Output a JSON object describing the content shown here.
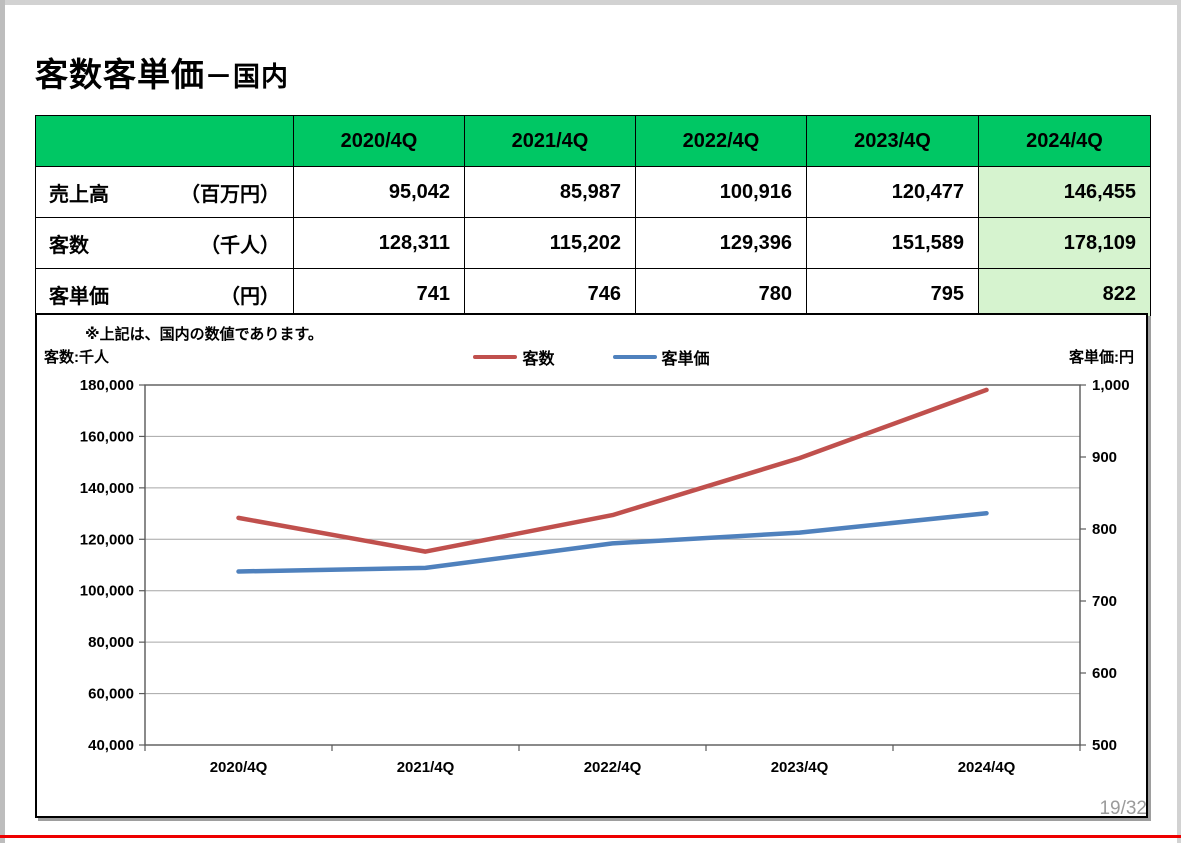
{
  "page": {
    "title_main": "客数客単価",
    "title_suffix": "－国内",
    "page_number": "19/32"
  },
  "colors": {
    "header_green": "#00C764",
    "highlight_green": "#D6F3CF",
    "bottom_rule_red": "#EE0000"
  },
  "table": {
    "header": [
      "",
      "2020/4Q",
      "2021/4Q",
      "2022/4Q",
      "2023/4Q",
      "2024/4Q"
    ],
    "rows": [
      {
        "label": "売上高",
        "unit": "（百万円）",
        "values": [
          "95,042",
          "85,987",
          "100,916",
          "120,477",
          "146,455"
        ]
      },
      {
        "label": "客数",
        "unit": "（千人）",
        "values": [
          "128,311",
          "115,202",
          "129,396",
          "151,589",
          "178,109"
        ]
      },
      {
        "label": "客単価",
        "unit": "（円）",
        "values": [
          "741",
          "746",
          "780",
          "795",
          "822"
        ]
      }
    ]
  },
  "note": "※上記は、国内の数値であります。",
  "chart_data": {
    "type": "line",
    "categories": [
      "2020/4Q",
      "2021/4Q",
      "2022/4Q",
      "2023/4Q",
      "2024/4Q"
    ],
    "series": [
      {
        "name": "客数",
        "axis": "left",
        "color": "#C0504D",
        "values": [
          128311,
          115202,
          129396,
          151589,
          178109
        ]
      },
      {
        "name": "客単価",
        "axis": "right",
        "color": "#4F81BD",
        "values": [
          741,
          746,
          780,
          795,
          822
        ]
      }
    ],
    "left_axis": {
      "label": "客数:千人",
      "min": 40000,
      "max": 180000,
      "step": 20000,
      "ticks": [
        "180,000",
        "160,000",
        "140,000",
        "120,000",
        "100,000",
        "80,000",
        "60,000",
        "40,000"
      ]
    },
    "right_axis": {
      "label": "客単価:円",
      "min": 500,
      "max": 1000,
      "step": 100,
      "ticks": [
        "1,000",
        "900",
        "800",
        "700",
        "600",
        "500"
      ]
    },
    "grid": true,
    "legend_position": "top-center",
    "grid_color": "#A6A6A6",
    "axis_color": "#595959"
  }
}
